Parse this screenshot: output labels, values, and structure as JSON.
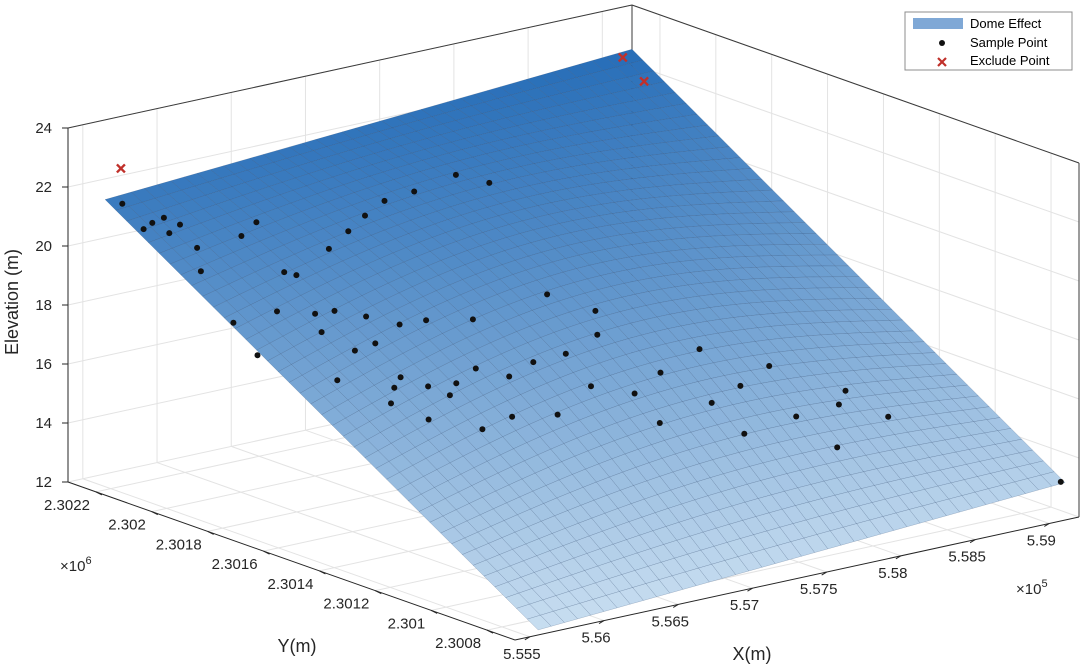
{
  "chart_data": {
    "type": "surface3d",
    "xlabel": "X(m)",
    "ylabel": "Y(m)",
    "zlabel": "Elevation (m)",
    "x_exponent_label": "×10",
    "x_exponent": "5",
    "y_exponent_label": "×10",
    "y_exponent": "6",
    "x_ticks": [
      "5.555",
      "5.56",
      "5.565",
      "5.57",
      "5.575",
      "5.58",
      "5.585",
      "5.59"
    ],
    "y_ticks": [
      "2.3008",
      "2.301",
      "2.3012",
      "2.3014",
      "2.3016",
      "2.3018",
      "2.302",
      "2.3022"
    ],
    "z_ticks": [
      "12",
      "14",
      "16",
      "18",
      "20",
      "22",
      "24"
    ],
    "xlim": [
      555400,
      559200
    ],
    "ylim": [
      2300700,
      2302300
    ],
    "zlim": [
      12,
      24
    ],
    "grid": true,
    "legend_position": "top-right",
    "legend": [
      {
        "label": "Dome Effect",
        "color": "#7fa8d6",
        "marker": "patch"
      },
      {
        "label": "Sample Point",
        "color": "#111111",
        "marker": "dot"
      },
      {
        "label": "Exclude Point",
        "color": "#c0302a",
        "marker": "x"
      }
    ],
    "surface": {
      "name": "Dome Effect",
      "x_range": [
        555650,
        559200
      ],
      "y_range": [
        2300750,
        2302300
      ],
      "corner_elevations": {
        "x_min_y_max": 21.3,
        "x_max_y_max": 22.5,
        "x_max_y_min": 13.0,
        "x_min_y_min": 11.9
      },
      "color_high": "#1f68b5",
      "color_low": "#c7ddf0"
    },
    "sample_points": [
      [
        555672,
        2302250,
        21.3
      ],
      [
        555740,
        2302210,
        20.5
      ],
      [
        555780,
        2302200,
        20.7
      ],
      [
        555820,
        2302180,
        20.9
      ],
      [
        555800,
        2302150,
        20.5
      ],
      [
        555910,
        2302170,
        20.6
      ],
      [
        555950,
        2302130,
        19.9
      ],
      [
        555900,
        2302090,
        19.3
      ],
      [
        555950,
        2302000,
        17.8
      ],
      [
        555980,
        2301930,
        16.9
      ],
      [
        556380,
        2302200,
        19.6
      ],
      [
        556500,
        2302210,
        19.9
      ],
      [
        556300,
        2302030,
        17.7
      ],
      [
        556480,
        2302100,
        18.6
      ],
      [
        556600,
        2302120,
        18.3
      ],
      [
        556500,
        2302000,
        17.5
      ],
      [
        556650,
        2302010,
        17.4
      ],
      [
        556800,
        2302110,
        19.0
      ],
      [
        556950,
        2302120,
        19.4
      ],
      [
        557100,
        2302140,
        19.7
      ],
      [
        557250,
        2302150,
        20.0
      ],
      [
        557450,
        2302150,
        20.1
      ],
      [
        557750,
        2302160,
        20.3
      ],
      [
        557900,
        2302120,
        20.0
      ],
      [
        556450,
        2301950,
        17.1
      ],
      [
        556580,
        2301900,
        16.5
      ],
      [
        556750,
        2301950,
        17.3
      ],
      [
        556680,
        2301880,
        16.7
      ],
      [
        556900,
        2301910,
        17.0
      ],
      [
        557060,
        2301900,
        17.0
      ],
      [
        557300,
        2301860,
        16.9
      ],
      [
        557800,
        2301860,
        17.2
      ],
      [
        556330,
        2301830,
        16.0
      ],
      [
        556560,
        2301760,
        15.2
      ],
      [
        556620,
        2301780,
        15.6
      ],
      [
        556700,
        2301800,
        15.8
      ],
      [
        556810,
        2301760,
        15.5
      ],
      [
        556900,
        2301730,
        15.2
      ],
      [
        557000,
        2301760,
        15.4
      ],
      [
        557150,
        2301770,
        15.7
      ],
      [
        557300,
        2301730,
        15.4
      ],
      [
        557500,
        2301750,
        15.6
      ],
      [
        557700,
        2301740,
        15.7
      ],
      [
        557950,
        2301760,
        16.0
      ],
      [
        558050,
        2301820,
        16.5
      ],
      [
        556700,
        2301700,
        14.7
      ],
      [
        556950,
        2301640,
        14.3
      ],
      [
        557150,
        2301640,
        14.5
      ],
      [
        557400,
        2301610,
        14.4
      ],
      [
        557700,
        2301650,
        14.9
      ],
      [
        557900,
        2301600,
        14.6
      ],
      [
        558150,
        2301640,
        14.9
      ],
      [
        558450,
        2301660,
        15.3
      ],
      [
        557900,
        2301510,
        13.9
      ],
      [
        558250,
        2301510,
        14.2
      ],
      [
        558500,
        2301540,
        14.4
      ],
      [
        558750,
        2301570,
        14.7
      ],
      [
        558300,
        2301420,
        13.4
      ],
      [
        558650,
        2301420,
        13.6
      ],
      [
        558900,
        2301400,
        13.8
      ],
      [
        559020,
        2301440,
        14.0
      ],
      [
        559100,
        2301330,
        13.4
      ],
      [
        558700,
        2301300,
        12.9
      ],
      [
        559190,
        2300760,
        13.0
      ]
    ],
    "exclude_points": [
      [
        555700,
        2302270,
        22.4
      ],
      [
        559100,
        2302280,
        22.4
      ],
      [
        559150,
        2302230,
        21.7
      ]
    ]
  }
}
